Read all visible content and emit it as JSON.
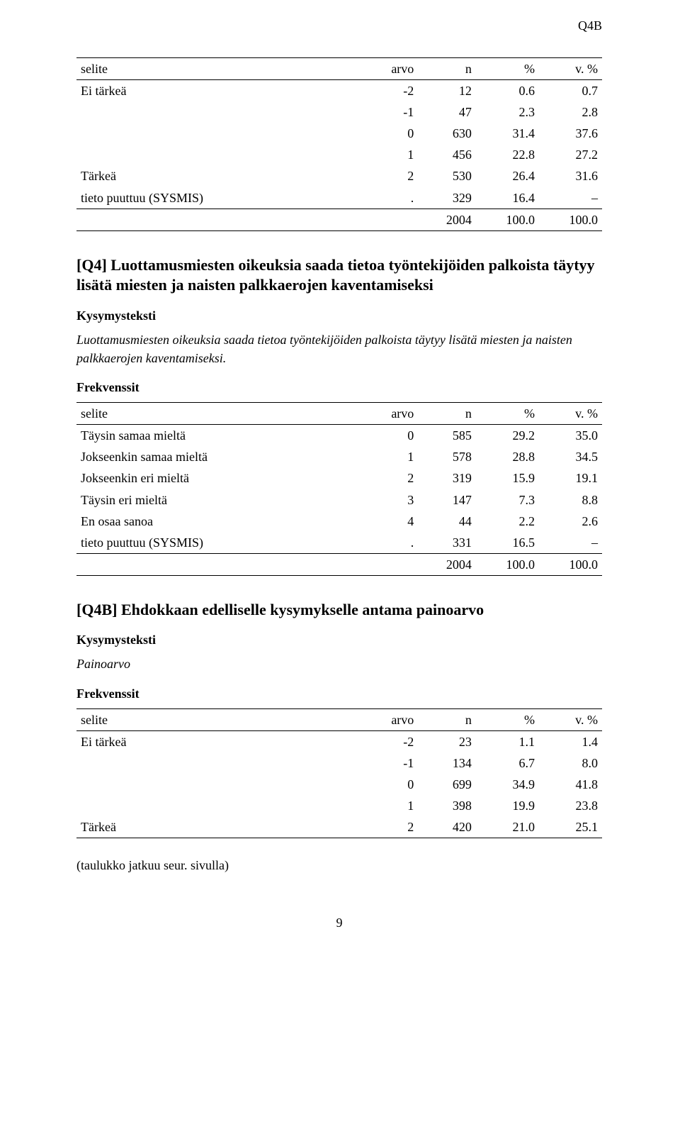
{
  "corner_tag": "Q4B",
  "table1": {
    "headers": {
      "selite": "selite",
      "arvo": "arvo",
      "n": "n",
      "pct": "%",
      "vpct": "v. %"
    },
    "rows": [
      {
        "selite": "Ei tärkeä",
        "arvo": "-2",
        "n": "12",
        "pct": "0.6",
        "vpct": "0.7"
      },
      {
        "selite": "",
        "arvo": "-1",
        "n": "47",
        "pct": "2.3",
        "vpct": "2.8"
      },
      {
        "selite": "",
        "arvo": "0",
        "n": "630",
        "pct": "31.4",
        "vpct": "37.6"
      },
      {
        "selite": "",
        "arvo": "1",
        "n": "456",
        "pct": "22.8",
        "vpct": "27.2"
      },
      {
        "selite": "Tärkeä",
        "arvo": "2",
        "n": "530",
        "pct": "26.4",
        "vpct": "31.6"
      },
      {
        "selite": "tieto puuttuu (SYSMIS)",
        "arvo": ".",
        "n": "329",
        "pct": "16.4",
        "vpct": "–"
      }
    ],
    "total": {
      "selite": "",
      "arvo": "",
      "n": "2004",
      "pct": "100.0",
      "vpct": "100.0"
    }
  },
  "section_q4": {
    "title": "[Q4] Luottamusmiesten oikeuksia saada tietoa työntekijöiden palkoista täytyy lisätä miesten ja naisten palkkaerojen kaventamiseksi",
    "kysymys_label": "Kysymysteksti",
    "kysymys_body": "Luottamusmiesten oikeuksia saada tietoa työntekijöiden palkoista täytyy lisätä miesten ja naisten palkkaerojen kaventamiseksi.",
    "frekvenssit_label": "Frekvenssit"
  },
  "table2": {
    "headers": {
      "selite": "selite",
      "arvo": "arvo",
      "n": "n",
      "pct": "%",
      "vpct": "v. %"
    },
    "rows": [
      {
        "selite": "Täysin samaa mieltä",
        "arvo": "0",
        "n": "585",
        "pct": "29.2",
        "vpct": "35.0"
      },
      {
        "selite": "Jokseenkin samaa mieltä",
        "arvo": "1",
        "n": "578",
        "pct": "28.8",
        "vpct": "34.5"
      },
      {
        "selite": "Jokseenkin eri mieltä",
        "arvo": "2",
        "n": "319",
        "pct": "15.9",
        "vpct": "19.1"
      },
      {
        "selite": "Täysin eri mieltä",
        "arvo": "3",
        "n": "147",
        "pct": "7.3",
        "vpct": "8.8"
      },
      {
        "selite": "En osaa sanoa",
        "arvo": "4",
        "n": "44",
        "pct": "2.2",
        "vpct": "2.6"
      },
      {
        "selite": "tieto puuttuu (SYSMIS)",
        "arvo": ".",
        "n": "331",
        "pct": "16.5",
        "vpct": "–"
      }
    ],
    "total": {
      "selite": "",
      "arvo": "",
      "n": "2004",
      "pct": "100.0",
      "vpct": "100.0"
    }
  },
  "section_q4b": {
    "title": "[Q4B] Ehdokkaan edelliselle kysymykselle antama painoarvo",
    "kysymys_label": "Kysymysteksti",
    "kysymys_body": "Painoarvo",
    "frekvenssit_label": "Frekvenssit"
  },
  "table3": {
    "headers": {
      "selite": "selite",
      "arvo": "arvo",
      "n": "n",
      "pct": "%",
      "vpct": "v. %"
    },
    "rows": [
      {
        "selite": "Ei tärkeä",
        "arvo": "-2",
        "n": "23",
        "pct": "1.1",
        "vpct": "1.4"
      },
      {
        "selite": "",
        "arvo": "-1",
        "n": "134",
        "pct": "6.7",
        "vpct": "8.0"
      },
      {
        "selite": "",
        "arvo": "0",
        "n": "699",
        "pct": "34.9",
        "vpct": "41.8"
      },
      {
        "selite": "",
        "arvo": "1",
        "n": "398",
        "pct": "19.9",
        "vpct": "23.8"
      },
      {
        "selite": "Tärkeä",
        "arvo": "2",
        "n": "420",
        "pct": "21.0",
        "vpct": "25.1"
      }
    ]
  },
  "jatkuu": "(taulukko jatkuu seur. sivulla)",
  "page_number": "9"
}
